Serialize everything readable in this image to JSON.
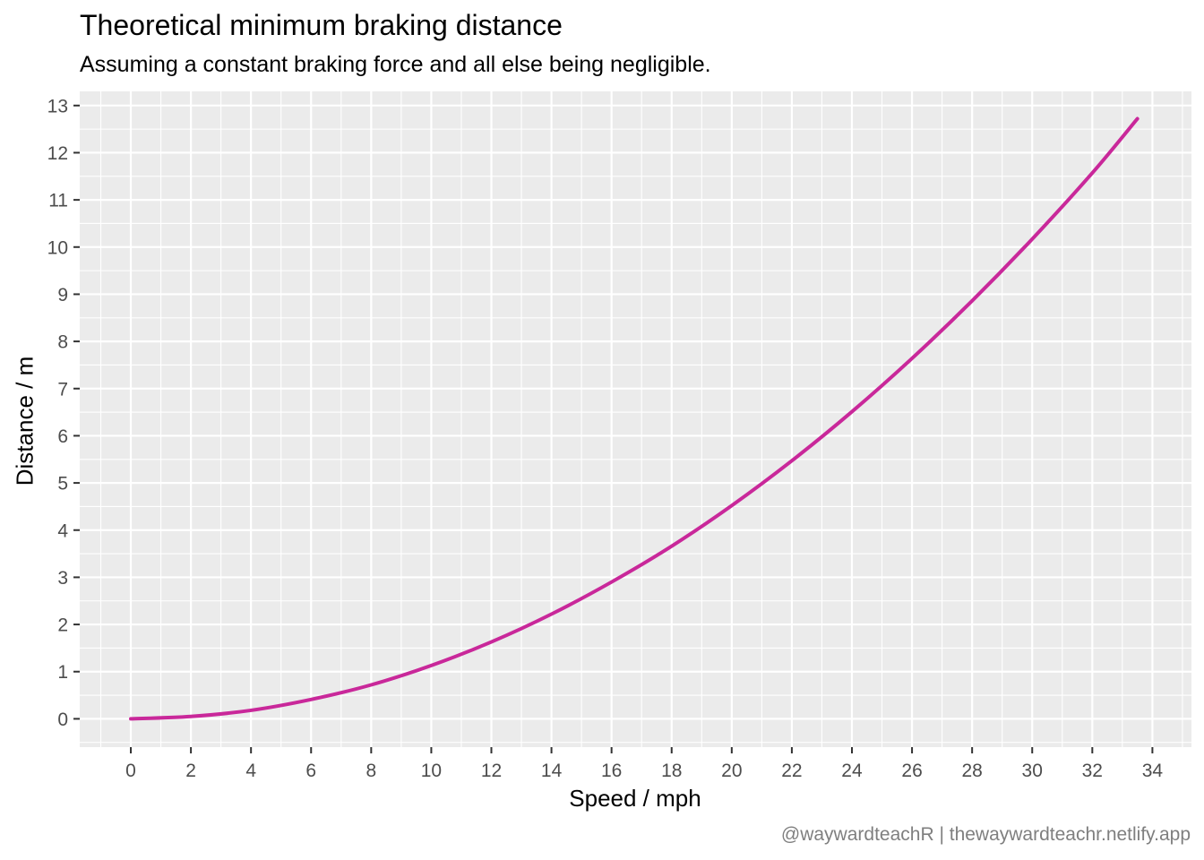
{
  "chart_data": {
    "type": "line",
    "title": "Theoretical minimum braking distance",
    "subtitle": "Assuming a constant braking force and all else being negligible.",
    "xlabel": "Speed / mph",
    "ylabel": "Distance / m",
    "caption": "@waywardteachR | thewaywardteachr.netlify.app",
    "xlim": [
      -1.7,
      35.3
    ],
    "ylim": [
      -0.6,
      13.3
    ],
    "x_ticks": [
      0,
      2,
      4,
      6,
      8,
      10,
      12,
      14,
      16,
      18,
      20,
      22,
      24,
      26,
      28,
      30,
      32,
      34
    ],
    "y_ticks": [
      0,
      1,
      2,
      3,
      4,
      5,
      6,
      7,
      8,
      9,
      10,
      11,
      12,
      13
    ],
    "grid": true,
    "background": "#EBEBEB",
    "gridColor": "#FFFFFF",
    "lineColor": "#C9289A",
    "series": [
      {
        "x": [
          0,
          2,
          4,
          6,
          8,
          10,
          12,
          14,
          16,
          18,
          20,
          22,
          24,
          26,
          28,
          30,
          32,
          33.5
        ],
        "y": [
          0,
          0.05,
          0.18,
          0.41,
          0.72,
          1.13,
          1.63,
          2.22,
          2.9,
          3.66,
          4.52,
          5.47,
          6.51,
          7.64,
          8.86,
          10.17,
          11.57,
          12.72
        ]
      }
    ]
  }
}
